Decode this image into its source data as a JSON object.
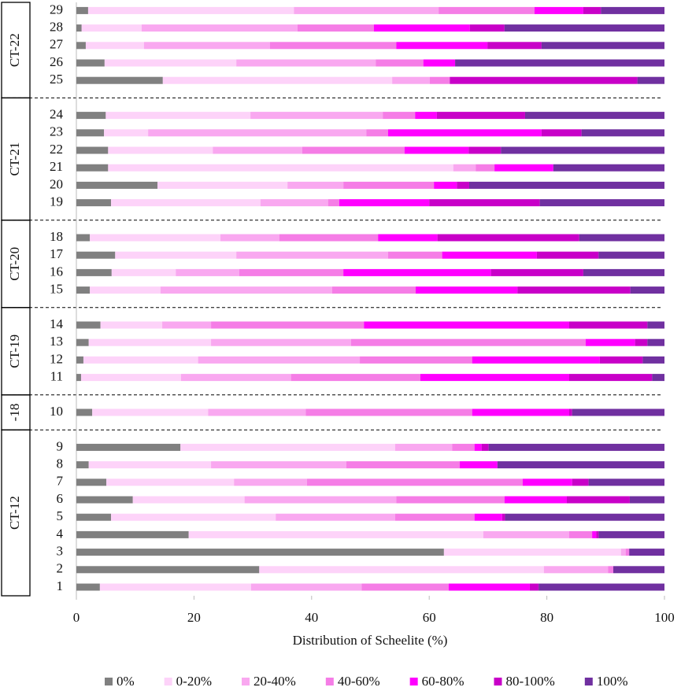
{
  "chart_data": {
    "type": "stacked-barh",
    "x_label": "Distribution of Scheelite (%)",
    "categories": [
      "1",
      "2",
      "3",
      "4",
      "5",
      "6",
      "7",
      "8",
      "9",
      "10",
      "11",
      "12",
      "13",
      "14",
      "15",
      "16",
      "17",
      "18",
      "19",
      "20",
      "21",
      "22",
      "23",
      "24",
      "25",
      "26",
      "27",
      "28",
      "29"
    ],
    "groups": [
      {
        "label": "CT-12",
        "count": 9
      },
      {
        "label": "-18",
        "count": 1
      },
      {
        "label": "CT-19",
        "count": 4
      },
      {
        "label": "CT-20",
        "count": 4
      },
      {
        "label": "CT-21",
        "count": 6
      },
      {
        "label": "CT-22",
        "count": 5
      }
    ],
    "series": [
      {
        "name": "0%",
        "color": "#808080",
        "values": [
          4.0,
          31.1,
          62.5,
          19.1,
          5.9,
          9.6,
          5.1,
          2.1,
          17.7,
          2.7,
          0.8,
          1.2,
          2.1,
          4.1,
          2.3,
          6.0,
          6.6,
          2.3,
          5.9,
          13.8,
          5.4,
          5.4,
          4.7,
          5.0,
          14.7,
          4.8,
          1.6,
          0.9,
          2.0
        ]
      },
      {
        "name": "0-20%",
        "color": "#fdd3f9",
        "values": [
          25.7,
          48.4,
          30.1,
          50.1,
          28.0,
          19.0,
          21.7,
          20.8,
          36.5,
          19.7,
          17.0,
          19.5,
          20.8,
          10.5,
          12.0,
          10.9,
          20.6,
          22.2,
          25.4,
          22.1,
          58.7,
          17.8,
          7.5,
          24.6,
          39.0,
          22.4,
          9.9,
          10.2,
          35.0
        ]
      },
      {
        "name": "20-40%",
        "color": "#f9a8f0",
        "values": [
          18.8,
          10.9,
          0.8,
          14.6,
          20.3,
          25.8,
          12.4,
          23.0,
          9.7,
          16.6,
          18.7,
          27.5,
          23.8,
          8.3,
          29.2,
          10.8,
          25.8,
          10.0,
          11.5,
          9.5,
          3.8,
          15.2,
          37.1,
          22.5,
          6.4,
          23.7,
          21.4,
          26.5,
          24.6
        ]
      },
      {
        "name": "40-60%",
        "color": "#f57de6",
        "values": [
          14.8,
          0.9,
          0.6,
          3.9,
          13.5,
          18.4,
          36.7,
          19.3,
          3.8,
          28.3,
          22.0,
          19.1,
          39.9,
          26.0,
          14.2,
          17.7,
          9.2,
          16.8,
          1.9,
          15.4,
          3.2,
          17.4,
          3.7,
          5.5,
          3.4,
          8.1,
          21.5,
          13.0,
          16.3
        ]
      },
      {
        "name": "60-80%",
        "color": "#ff00ff",
        "values": [
          13.8,
          0,
          0,
          0.7,
          4.7,
          10.6,
          8.4,
          6.4,
          1.2,
          16.5,
          25.3,
          21.7,
          8.4,
          34.9,
          17.3,
          25.1,
          16.1,
          10.1,
          15.3,
          3.9,
          10.0,
          10.9,
          26.1,
          3.7,
          0,
          5.4,
          15.5,
          16.3,
          8.3
        ]
      },
      {
        "name": "80-100%",
        "color": "#c800c8",
        "values": [
          1.5,
          0,
          0,
          0.4,
          0.5,
          10.7,
          2.8,
          0,
          1.2,
          0.5,
          14.1,
          7.3,
          2.1,
          13.3,
          19.2,
          15.7,
          10.5,
          24.1,
          18.8,
          2.1,
          0,
          5.5,
          6.8,
          15.0,
          31.9,
          0,
          9.2,
          5.9,
          3.0
        ]
      },
      {
        "name": "100%",
        "color": "#7030a0",
        "values": [
          21.4,
          8.7,
          6.0,
          11.2,
          27.1,
          5.9,
          12.9,
          28.4,
          29.9,
          15.7,
          2.1,
          3.7,
          2.9,
          2.9,
          5.8,
          13.8,
          11.2,
          14.5,
          21.2,
          33.2,
          18.9,
          27.8,
          14.1,
          23.7,
          4.6,
          35.6,
          20.9,
          27.2,
          10.8
        ]
      }
    ],
    "xlim": [
      0,
      100
    ],
    "xticks": [
      0,
      20,
      40,
      60,
      80,
      100
    ]
  }
}
